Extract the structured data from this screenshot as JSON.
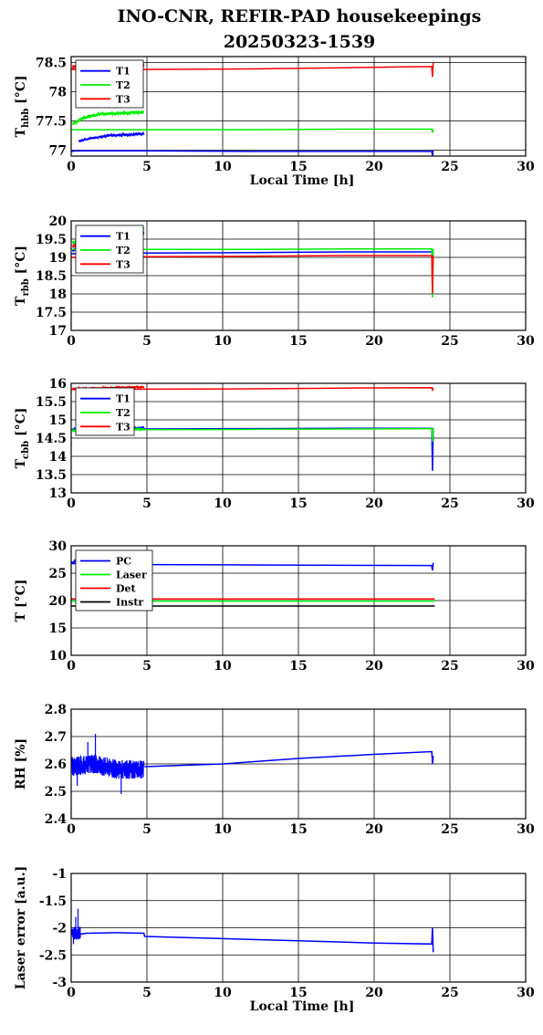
{
  "figure": {
    "title_line1": "INO-CNR, REFIR-PAD housekeepings",
    "title_line2": "20250323-1539"
  },
  "colors": {
    "blue": "#0000ff",
    "green": "#00ee00",
    "red": "#ff0000",
    "black": "#000000"
  },
  "chart_data": [
    {
      "type": "line",
      "ylabel_main": "T",
      "ylabel_sub": "hbb",
      "ylabel_unit": "[°C]",
      "xlabel": "Local Time [h]",
      "xlim": [
        0,
        30
      ],
      "ylim": [
        76.9,
        78.6
      ],
      "xticks": [
        0,
        5,
        10,
        15,
        20,
        25,
        30
      ],
      "yticks": [
        77,
        77.5,
        78,
        78.5
      ],
      "ytick_labels": [
        "77",
        "77.5",
        "78",
        "78.5"
      ],
      "legend": [
        "T1",
        "T2",
        "T3"
      ],
      "series": [
        {
          "name": "T1",
          "color": "blue",
          "noisy": [
            [
              0.5,
              77.15
            ],
            [
              1.2,
              77.2
            ],
            [
              2.5,
              77.25
            ],
            [
              4.8,
              77.28
            ]
          ],
          "noise": 0.02,
          "x": [
            0,
            0.3,
            4.8,
            4.85,
            12,
            18,
            23.8,
            23.85,
            23.9
          ],
          "y": [
            76.98,
            76.99,
            76.99,
            76.99,
            76.98,
            76.98,
            76.98,
            76.9,
            77.0
          ]
        },
        {
          "name": "T2",
          "color": "green",
          "noisy": [
            [
              0.1,
              77.45
            ],
            [
              0.8,
              77.55
            ],
            [
              2.0,
              77.62
            ],
            [
              4.8,
              77.65
            ]
          ],
          "noise": 0.025,
          "x": [
            0,
            0.3,
            4.8,
            4.85,
            12,
            18,
            23.8,
            23.85,
            23.9
          ],
          "y": [
            77.35,
            77.35,
            77.35,
            77.35,
            77.35,
            77.36,
            77.36,
            77.3,
            77.36
          ]
        },
        {
          "name": "T3",
          "color": "red",
          "noisy": [
            [
              0.1,
              78.42
            ],
            [
              1.5,
              78.45
            ],
            [
              3.0,
              78.46
            ],
            [
              4.8,
              78.45
            ]
          ],
          "noise": 0.04,
          "x": [
            0,
            4.85,
            12,
            18,
            23.8,
            23.85,
            23.9
          ],
          "y": [
            78.38,
            78.38,
            78.39,
            78.41,
            78.43,
            78.25,
            78.5
          ]
        }
      ]
    },
    {
      "type": "line",
      "ylabel_main": "T",
      "ylabel_sub": "rbb",
      "ylabel_unit": "[°C]",
      "xlabel": "",
      "xlim": [
        0,
        30
      ],
      "ylim": [
        17,
        20
      ],
      "xticks": [
        0,
        5,
        10,
        15,
        20,
        25,
        30
      ],
      "yticks": [
        17,
        17.5,
        18,
        18.5,
        19,
        19.5,
        20
      ],
      "ytick_labels": [
        "17",
        "17.5",
        "18",
        "18.5",
        "19",
        "19.5",
        "20"
      ],
      "legend": [
        "T1",
        "T2",
        "T3"
      ],
      "series": [
        {
          "name": "T1",
          "color": "blue",
          "noisy": [
            [
              0.1,
              19.2
            ],
            [
              2.5,
              19.5
            ],
            [
              4.8,
              19.7
            ]
          ],
          "noise": 0.04,
          "x": [
            0,
            4.85,
            12,
            18,
            23.8,
            23.85,
            23.9
          ],
          "y": [
            19.1,
            19.12,
            19.13,
            19.15,
            19.15,
            18.9,
            19.15
          ]
        },
        {
          "name": "T2",
          "color": "green",
          "noisy": [
            [
              0.1,
              19.4
            ],
            [
              2.5,
              19.6
            ],
            [
              4.8,
              19.8
            ]
          ],
          "noise": 0.05,
          "x": [
            0,
            4.85,
            12,
            18,
            23.8,
            23.85,
            23.9
          ],
          "y": [
            19.22,
            19.22,
            19.22,
            19.23,
            19.23,
            17.9,
            19.23
          ]
        },
        {
          "name": "T3",
          "color": "red",
          "noisy": [
            [
              0.1,
              19.3
            ],
            [
              2.5,
              19.5
            ],
            [
              4.8,
              19.65
            ]
          ],
          "noise": 0.04,
          "x": [
            0,
            4.85,
            12,
            18,
            23.8,
            23.85,
            23.9
          ],
          "y": [
            19.0,
            19.02,
            19.03,
            19.05,
            19.05,
            18.0,
            19.05
          ]
        }
      ]
    },
    {
      "type": "line",
      "ylabel_main": "T",
      "ylabel_sub": "cbb",
      "ylabel_unit": "[°C]",
      "xlabel": "",
      "xlim": [
        0,
        30
      ],
      "ylim": [
        13,
        16
      ],
      "xticks": [
        0,
        5,
        10,
        15,
        20,
        25,
        30
      ],
      "yticks": [
        13,
        13.5,
        14,
        14.5,
        15,
        15.5,
        16
      ],
      "ytick_labels": [
        "13",
        "13.5",
        "14",
        "14.5",
        "15",
        "15.5",
        "16"
      ],
      "legend": [
        "T1",
        "T2",
        "T3"
      ],
      "series": [
        {
          "name": "T1",
          "color": "blue",
          "noisy": [
            [
              0.1,
              14.75
            ],
            [
              4.8,
              14.78
            ]
          ],
          "noise": 0.02,
          "x": [
            0,
            4.85,
            12,
            18,
            23.8,
            23.85,
            23.9
          ],
          "y": [
            14.74,
            14.75,
            14.76,
            14.77,
            14.77,
            13.6,
            14.77
          ]
        },
        {
          "name": "T2",
          "color": "green",
          "noisy": [
            [
              0.1,
              14.7
            ],
            [
              4.8,
              14.75
            ]
          ],
          "noise": 0.025,
          "x": [
            0,
            4.85,
            12,
            18,
            23.8,
            23.85,
            23.9
          ],
          "y": [
            14.72,
            14.73,
            14.74,
            14.75,
            14.76,
            14.4,
            14.76
          ]
        },
        {
          "name": "T3",
          "color": "red",
          "noisy": [
            [
              0.1,
              15.85
            ],
            [
              4.8,
              15.9
            ]
          ],
          "noise": 0.03,
          "x": [
            0,
            4.85,
            12,
            18,
            23.8,
            23.85,
            23.9
          ],
          "y": [
            15.83,
            15.84,
            15.85,
            15.87,
            15.88,
            15.82,
            15.88
          ]
        }
      ]
    },
    {
      "type": "line",
      "ylabel_main": "T [°C]",
      "ylabel_sub": "",
      "ylabel_unit": "",
      "xlabel": "",
      "xlim": [
        0,
        30
      ],
      "ylim": [
        10,
        30
      ],
      "xticks": [
        0,
        5,
        10,
        15,
        20,
        25,
        30
      ],
      "yticks": [
        10,
        15,
        20,
        25,
        30
      ],
      "ytick_labels": [
        "10",
        "15",
        "20",
        "25",
        "30"
      ],
      "legend": [
        "PC",
        "Laser",
        "Det",
        "Instr"
      ],
      "series": [
        {
          "name": "PC",
          "color": "blue",
          "noisy": [
            [
              0,
              26.8
            ],
            [
              0.3,
              27.3
            ],
            [
              1.0,
              27.0
            ]
          ],
          "noise": 0.15,
          "x": [
            0,
            1.0,
            12,
            23.8,
            23.85,
            23.9
          ],
          "y": [
            26.8,
            26.6,
            26.5,
            26.4,
            25.5,
            26.9
          ]
        },
        {
          "name": "Laser",
          "color": "green",
          "x": [
            0,
            24
          ],
          "y": [
            19.9,
            19.9
          ]
        },
        {
          "name": "Det",
          "color": "red",
          "x": [
            0,
            24
          ],
          "y": [
            20.3,
            20.3
          ]
        },
        {
          "name": "Instr",
          "color": "black",
          "x": [
            0,
            24
          ],
          "y": [
            19.0,
            19.0
          ]
        }
      ]
    },
    {
      "type": "line",
      "ylabel_main": "RH [%]",
      "ylabel_sub": "",
      "ylabel_unit": "",
      "xlabel": "",
      "xlim": [
        0,
        30
      ],
      "ylim": [
        2.4,
        2.8
      ],
      "xticks": [
        0,
        5,
        10,
        15,
        20,
        25,
        30
      ],
      "yticks": [
        2.4,
        2.5,
        2.6,
        2.7,
        2.8
      ],
      "ytick_labels": [
        "2.4",
        "2.5",
        "2.6",
        "2.7",
        "2.8"
      ],
      "legend": [],
      "series": [
        {
          "name": "RH",
          "color": "blue",
          "noisy": [
            [
              0.05,
              2.59
            ],
            [
              1.5,
              2.6
            ],
            [
              3.0,
              2.58
            ],
            [
              4.8,
              2.58
            ]
          ],
          "noise": 0.035,
          "spikes": [
            [
              1.6,
              2.71
            ],
            [
              3.3,
              2.49
            ],
            [
              1.1,
              2.68
            ],
            [
              0.4,
              2.52
            ]
          ],
          "x": [
            4.85,
            10,
            15,
            20,
            23.8,
            23.85,
            23.9
          ],
          "y": [
            2.59,
            2.6,
            2.62,
            2.635,
            2.645,
            2.6,
            2.63
          ]
        }
      ]
    },
    {
      "type": "line",
      "ylabel_main": "Laser error [a.u.]",
      "ylabel_sub": "",
      "ylabel_unit": "",
      "xlabel": "Local Time [h]",
      "xlim": [
        0,
        30
      ],
      "ylim": [
        -3,
        -1
      ],
      "xticks": [
        0,
        5,
        10,
        15,
        20,
        25,
        30
      ],
      "yticks": [
        -3,
        -2.5,
        -2,
        -1.5,
        -1
      ],
      "ytick_labels": [
        "-3",
        "-2.5",
        "-2",
        "-1.5",
        "-1"
      ],
      "legend": [],
      "series": [
        {
          "name": "Laser error",
          "color": "blue",
          "noisy": [
            [
              0.02,
              -2.1
            ],
            [
              0.6,
              -2.1
            ]
          ],
          "noise": 0.12,
          "spikes": [
            [
              0.45,
              -1.65
            ],
            [
              0.15,
              -2.3
            ],
            [
              0.3,
              -1.8
            ]
          ],
          "x": [
            0.6,
            1.0,
            3.0,
            4.8,
            4.85,
            10,
            15,
            20,
            23.8,
            23.85,
            23.9
          ],
          "y": [
            -2.12,
            -2.1,
            -2.09,
            -2.1,
            -2.16,
            -2.2,
            -2.24,
            -2.28,
            -2.3,
            -2.0,
            -2.45
          ]
        }
      ]
    }
  ]
}
